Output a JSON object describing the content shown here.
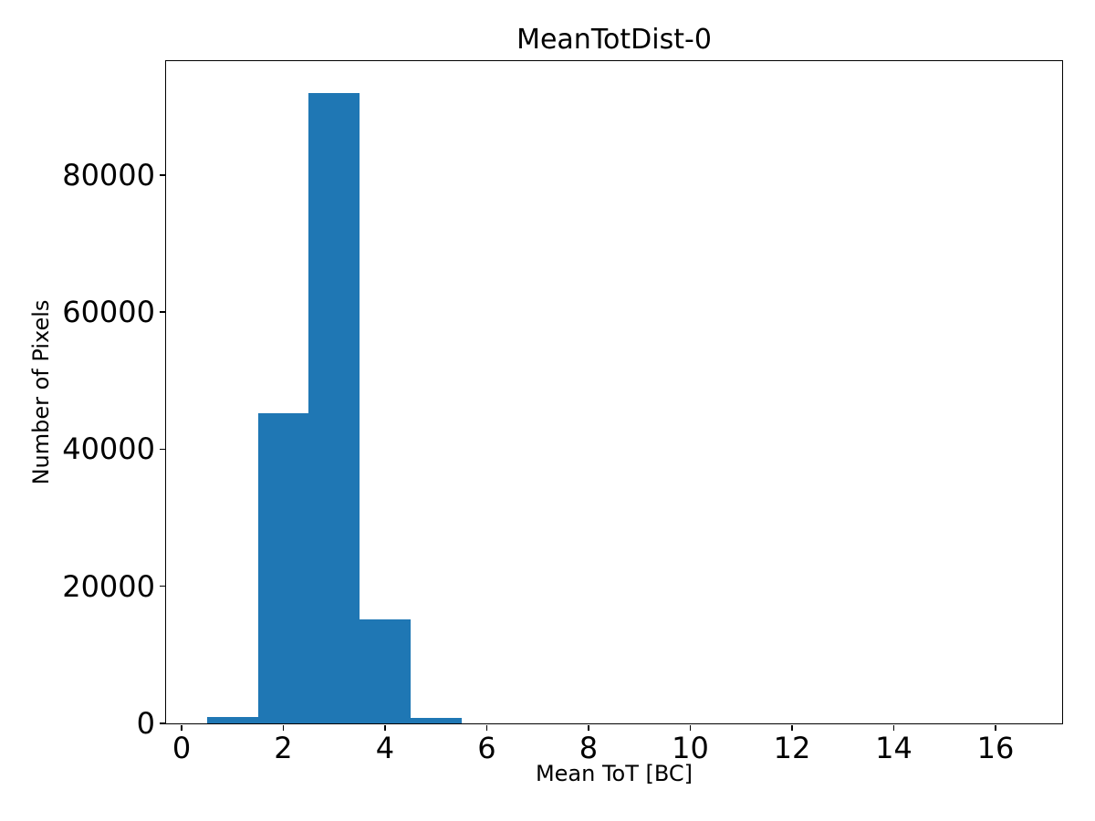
{
  "chart_data": {
    "type": "bar",
    "subtype": "histogram",
    "title": "MeanTotDist-0",
    "xlabel": "Mean ToT [BC]",
    "ylabel": "Number of Pixels",
    "bin_edges": [
      0.5,
      1.5,
      2.5,
      3.5,
      4.5,
      5.5
    ],
    "counts": [
      1000,
      45300,
      92000,
      15200,
      800
    ],
    "bar_color": "#1f77b4",
    "xlim": [
      -0.305,
      17.31
    ],
    "ylim": [
      0,
      96600
    ],
    "xtick_values": [
      0,
      2,
      4,
      6,
      8,
      10,
      12,
      14,
      16
    ],
    "xtick_labels": [
      "0",
      "2",
      "4",
      "6",
      "8",
      "10",
      "12",
      "14",
      "16"
    ],
    "ytick_values": [
      0,
      20000,
      40000,
      60000,
      80000
    ],
    "ytick_labels": [
      "0",
      "20000",
      "40000",
      "60000",
      "80000"
    ],
    "grid": false,
    "legend": null,
    "axis_color": "#000000",
    "background_color": "#ffffff"
  }
}
